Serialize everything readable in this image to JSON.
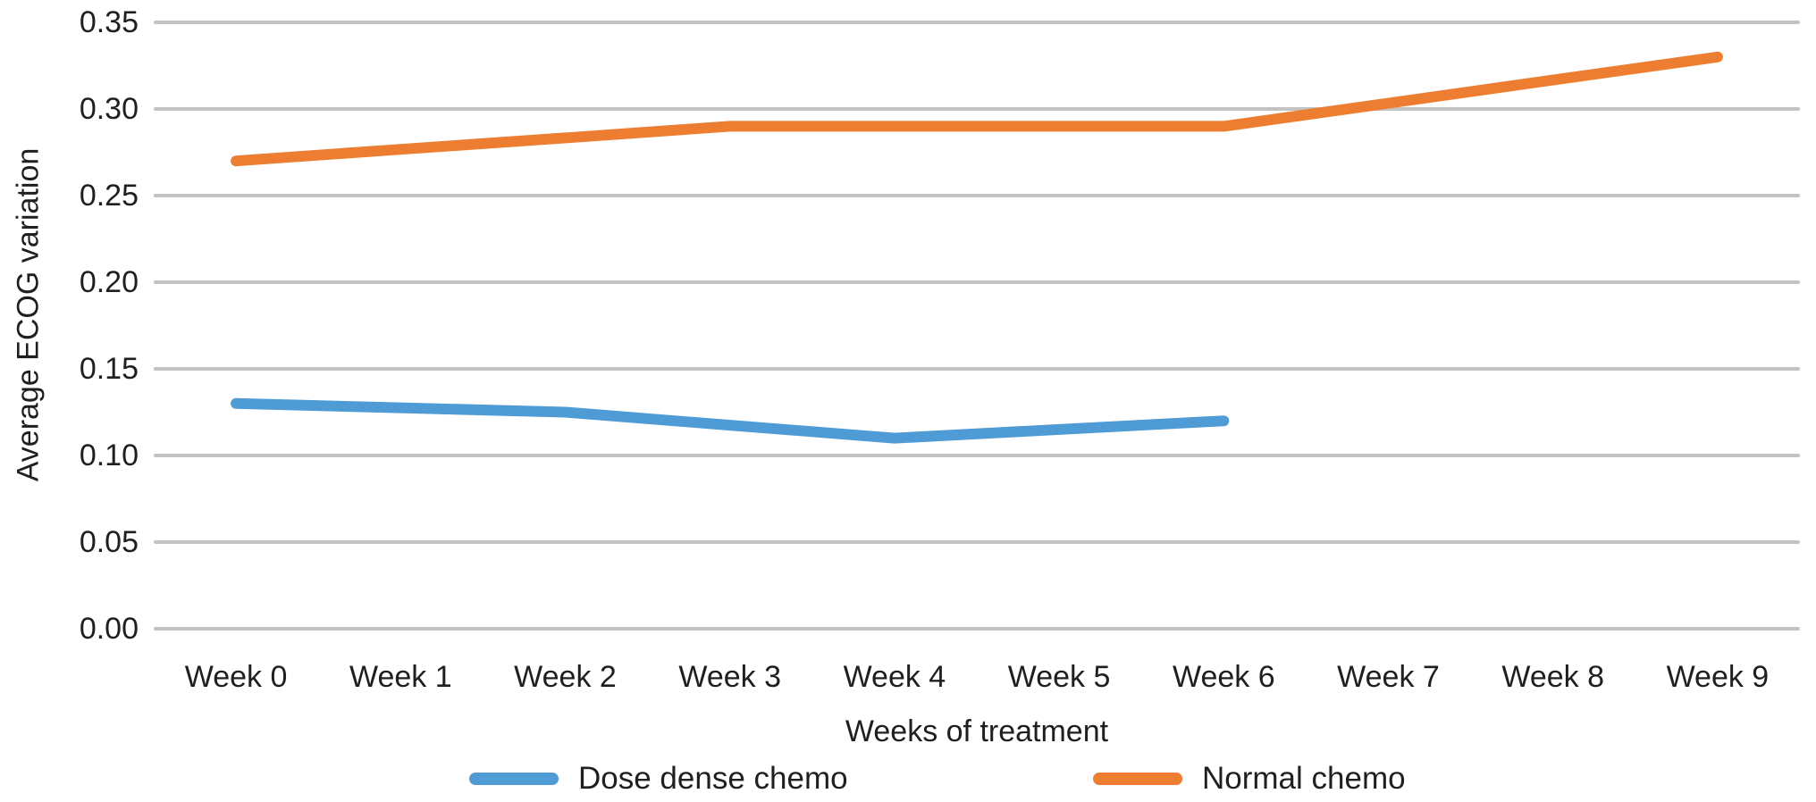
{
  "chart_data": {
    "type": "line",
    "title": "",
    "xlabel": "Weeks of treatment",
    "ylabel": "Average ECOG variation",
    "categories": [
      "Week 0",
      "Week 1",
      "Week 2",
      "Week 3",
      "Week 4",
      "Week 5",
      "Week 6",
      "Week 7",
      "Week 8",
      "Week 9"
    ],
    "series": [
      {
        "name": "Dose dense chemo",
        "color": "#4F9BD5",
        "values": [
          0.13,
          0.1275,
          0.125,
          0.1175,
          0.11,
          0.115,
          0.12
        ]
      },
      {
        "name": "Normal chemo",
        "color": "#ED7D31",
        "values": [
          0.27,
          0.2767,
          0.2833,
          0.29,
          0.29,
          0.29,
          0.29,
          0.3033,
          0.3167,
          0.33
        ]
      }
    ],
    "ylim": [
      0,
      0.35
    ],
    "ytick_step": 0.05,
    "ytick_labels": [
      "0.00",
      "0.05",
      "0.10",
      "0.15",
      "0.20",
      "0.25",
      "0.30",
      "0.35"
    ],
    "grid": true,
    "legend_position": "bottom",
    "colors": {
      "gridline": "#c3c3c3",
      "text": "#1f1f1f",
      "background": "#ffffff"
    }
  }
}
